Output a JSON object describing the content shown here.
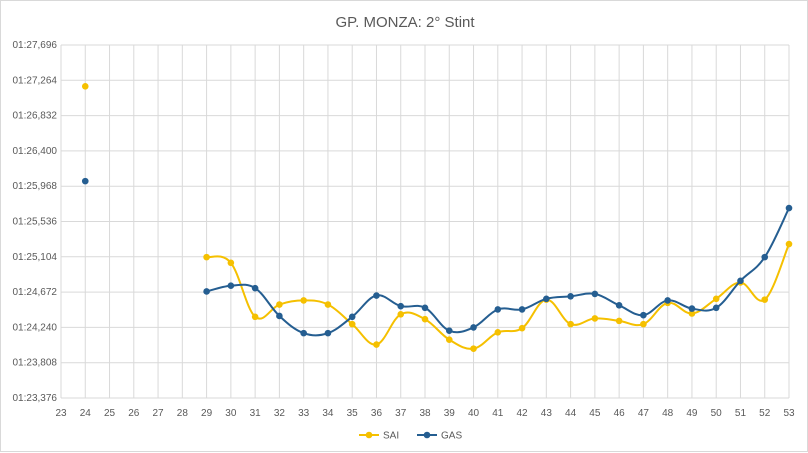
{
  "chart_data": {
    "type": "line",
    "title": "GP.  MONZA: 2° Stint",
    "xlabel": "",
    "ylabel": "",
    "x_ticks": [
      "23",
      "24",
      "25",
      "26",
      "27",
      "28",
      "29",
      "30",
      "31",
      "32",
      "33",
      "34",
      "35",
      "36",
      "37",
      "38",
      "39",
      "40",
      "41",
      "42",
      "43",
      "44",
      "45",
      "46",
      "47",
      "48",
      "49",
      "50",
      "51",
      "52",
      "53"
    ],
    "xlim": [
      23,
      53
    ],
    "y_ticks": [
      "01:23,376",
      "01:23,808",
      "01:24,240",
      "01:24,672",
      "01:25,104",
      "01:25,536",
      "01:25,968",
      "01:26,400",
      "01:26,832",
      "01:27,264",
      "01:27,696"
    ],
    "ylim": [
      83.376,
      87.696
    ],
    "y_unit": "lap time (seconds, shown as mm:ss,mmm)",
    "grid": true,
    "smooth": true,
    "legend_position": "bottom",
    "series": [
      {
        "name": "SAI",
        "color": "#F5C000",
        "x": [
          24,
          29,
          30,
          31,
          32,
          33,
          34,
          35,
          36,
          37,
          38,
          39,
          40,
          41,
          42,
          43,
          44,
          45,
          46,
          47,
          48,
          49,
          50,
          51,
          52,
          53
        ],
        "y": [
          87.19,
          85.1,
          85.03,
          84.37,
          84.52,
          84.57,
          84.52,
          84.28,
          84.03,
          84.4,
          84.34,
          84.09,
          83.98,
          84.18,
          84.23,
          84.58,
          84.28,
          84.35,
          84.32,
          84.28,
          84.54,
          84.41,
          84.59,
          84.79,
          84.58,
          85.26
        ]
      },
      {
        "name": "GAS",
        "color": "#255E91",
        "x": [
          24,
          29,
          30,
          31,
          32,
          33,
          34,
          35,
          36,
          37,
          38,
          39,
          40,
          41,
          42,
          43,
          44,
          45,
          46,
          47,
          48,
          49,
          50,
          51,
          52,
          53
        ],
        "y": [
          86.03,
          84.68,
          84.75,
          84.72,
          84.38,
          84.17,
          84.17,
          84.37,
          84.63,
          84.5,
          84.48,
          84.2,
          84.24,
          84.46,
          84.46,
          84.59,
          84.62,
          84.65,
          84.51,
          84.39,
          84.57,
          84.47,
          84.48,
          84.81,
          85.1,
          85.7
        ]
      }
    ]
  }
}
